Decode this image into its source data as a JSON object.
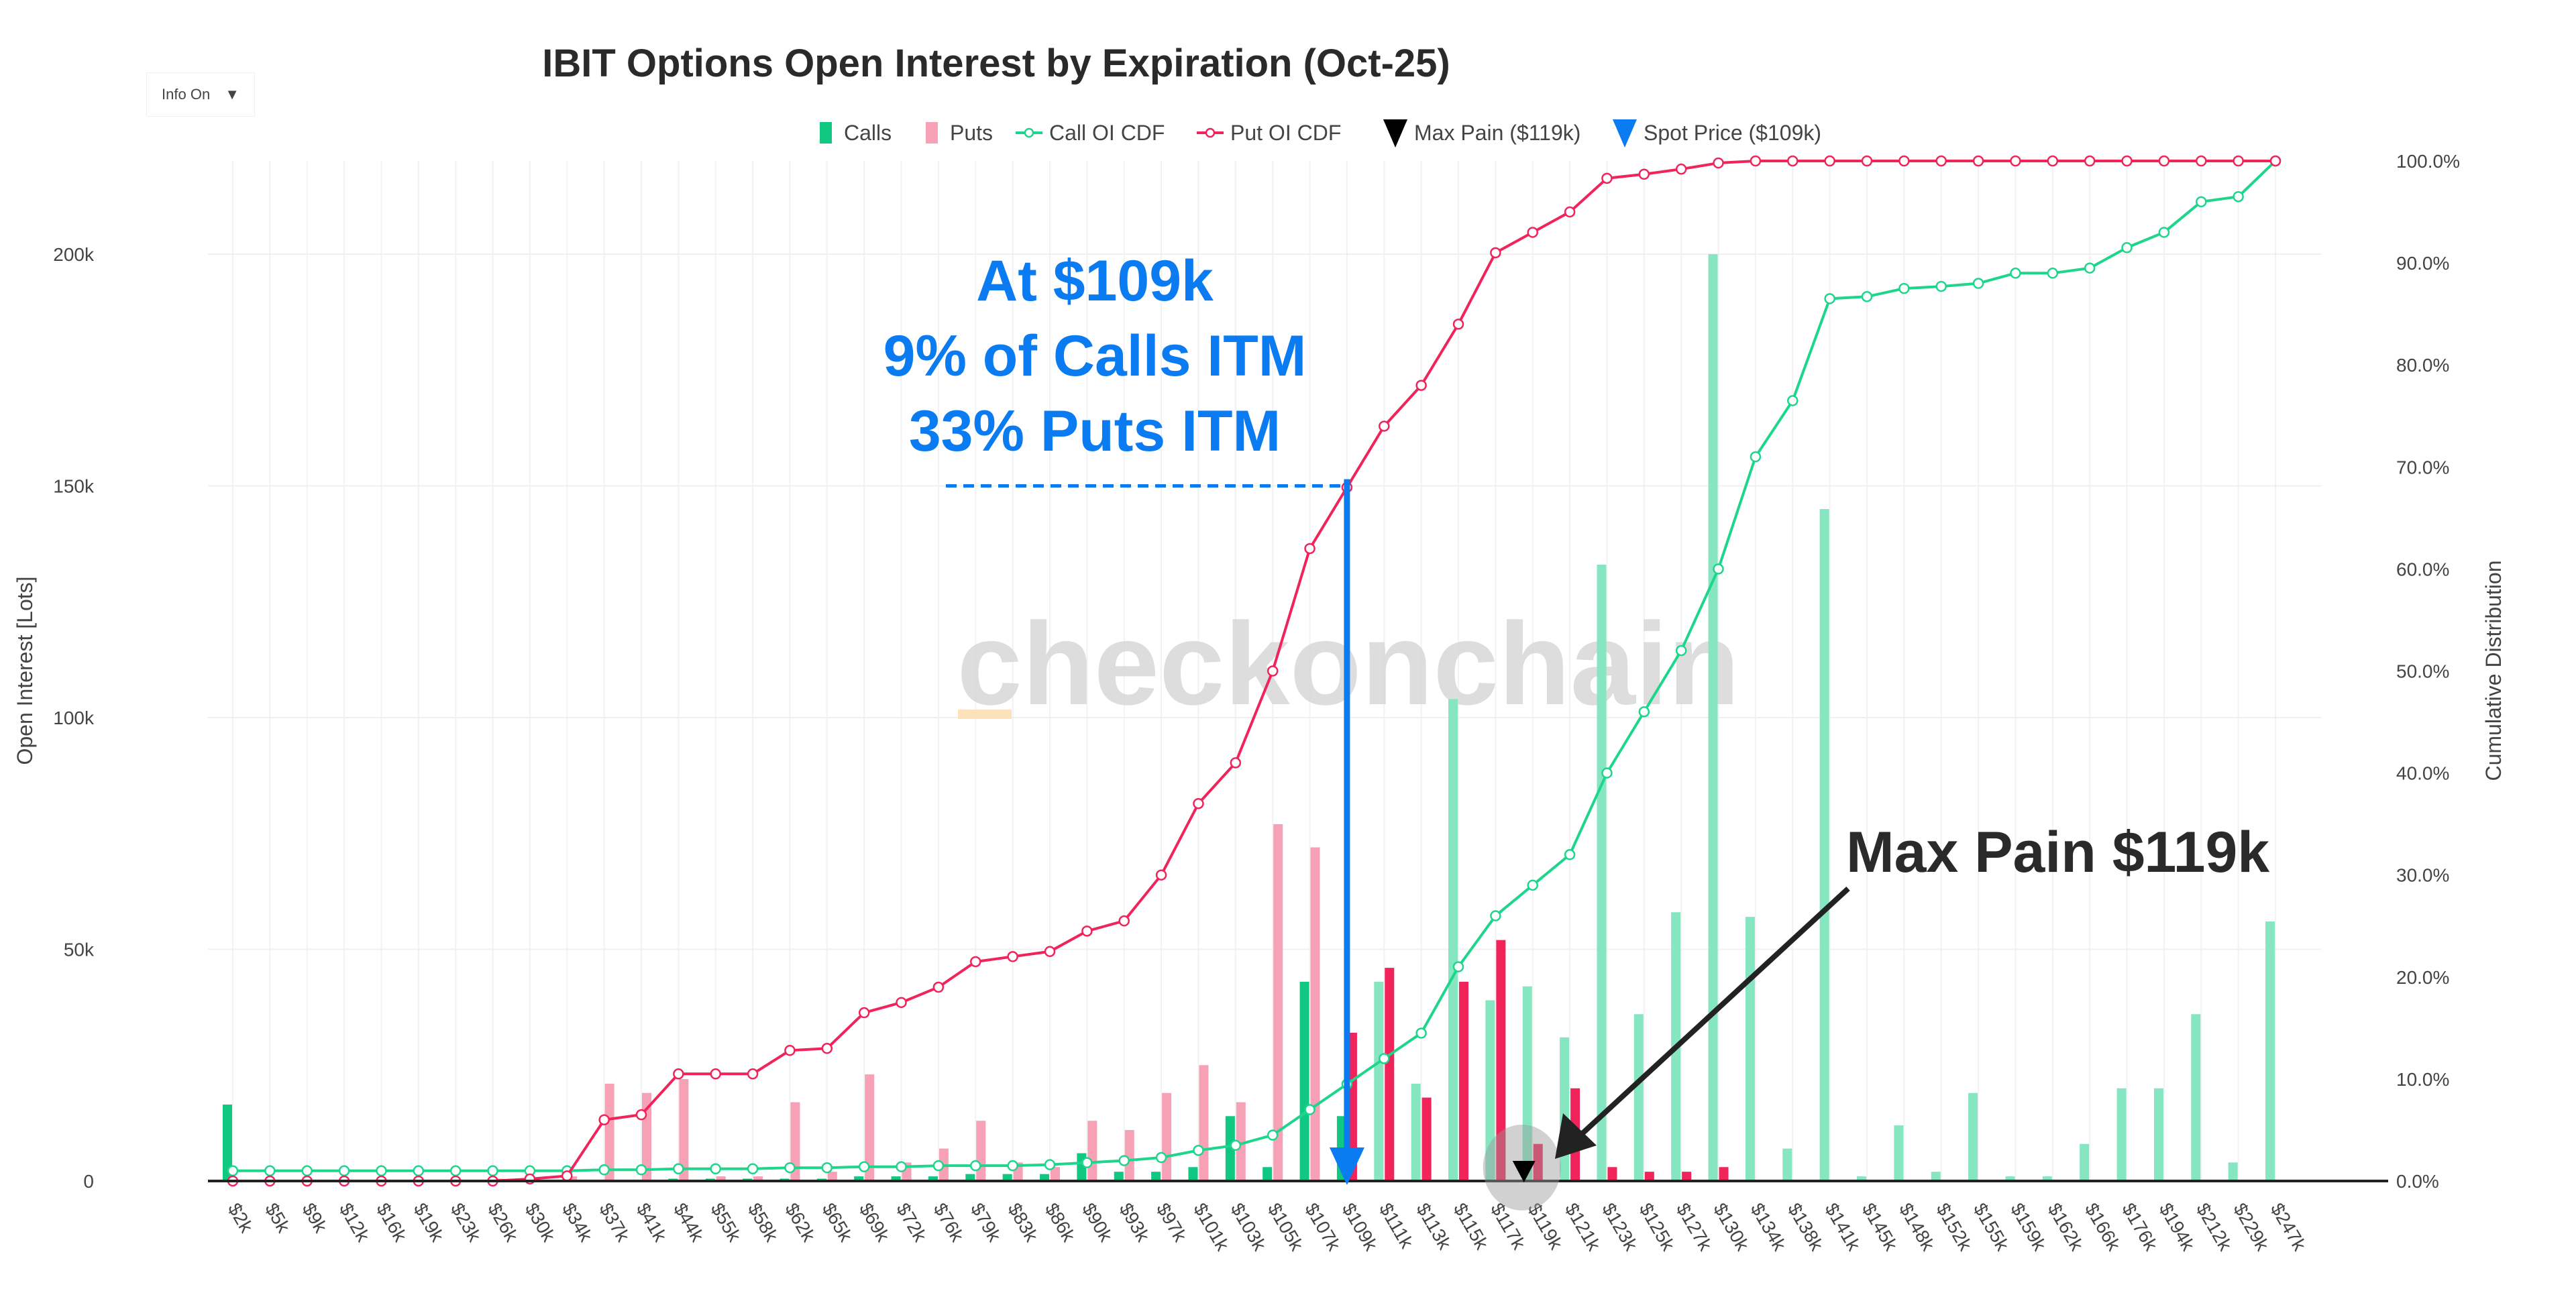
{
  "info_dropdown": {
    "label": "Info On",
    "icon": "caret-down-icon"
  },
  "watermark": "checkonchain",
  "colors": {
    "calls_itm": "#10c882",
    "calls_otm": "#86e6c2",
    "puts_itm": "#f6a1b5",
    "puts_otm": "#f0245a",
    "call_cdf": "#1ed68b",
    "put_cdf": "#f0245a",
    "max_pain": "#000000",
    "spot": "#0a7bf0"
  },
  "annotations": {
    "spot_lines": [
      "At $109k",
      "9% of Calls ITM",
      "33% Puts ITM"
    ],
    "max_pain": "Max Pain $119k"
  },
  "chart_data": {
    "type": "bar",
    "title": "IBIT Options Open Interest by Expiration (Oct-25)",
    "ylabel": "Open Interest [Lots]",
    "y2label": "Cumulative Distribution",
    "ylim": [
      0,
      220000
    ],
    "y2lim": [
      0,
      100
    ],
    "yticks": [
      "0",
      "50k",
      "100k",
      "150k",
      "200k"
    ],
    "yticks_values": [
      0,
      50000,
      100000,
      150000,
      200000
    ],
    "y2ticks": [
      "0.0%",
      "10.0%",
      "20.0%",
      "30.0%",
      "40.0%",
      "50.0%",
      "60.0%",
      "70.0%",
      "80.0%",
      "90.0%",
      "100.0%"
    ],
    "grid": true,
    "legend_position": "top-center",
    "legend": [
      "Calls",
      "Puts",
      "Call OI CDF",
      "Put OI CDF",
      "Max Pain ($119k)",
      "Spot Price ($109k)"
    ],
    "categories": [
      "$2k",
      "$5k",
      "$9k",
      "$12k",
      "$16k",
      "$19k",
      "$23k",
      "$26k",
      "$30k",
      "$34k",
      "$37k",
      "$41k",
      "$44k",
      "$55k",
      "$58k",
      "$62k",
      "$65k",
      "$69k",
      "$72k",
      "$76k",
      "$79k",
      "$83k",
      "$86k",
      "$90k",
      "$93k",
      "$97k",
      "$101k",
      "$103k",
      "$105k",
      "$107k",
      "$109k",
      "$111k",
      "$113k",
      "$115k",
      "$117k",
      "$119k",
      "$121k",
      "$123k",
      "$125k",
      "$127k",
      "$130k",
      "$134k",
      "$138k",
      "$141k",
      "$145k",
      "$148k",
      "$152k",
      "$155k",
      "$159k",
      "$162k",
      "$166k",
      "$176k",
      "$194k",
      "$212k",
      "$229k",
      "$247k"
    ],
    "series": [
      {
        "name": "Calls",
        "values": [
          16500,
          0,
          0,
          0,
          0,
          0,
          0,
          0,
          0,
          0,
          0,
          0,
          500,
          500,
          500,
          500,
          500,
          1000,
          1000,
          1000,
          1500,
          1500,
          1500,
          6000,
          2000,
          2000,
          3000,
          14000,
          3000,
          43000,
          14000,
          43000,
          21000,
          104000,
          39000,
          42000,
          31000,
          133000,
          36000,
          58000,
          200000,
          57000,
          7000,
          145000,
          1000,
          12000,
          2000,
          19000,
          1000,
          1000,
          8000,
          20000,
          20000,
          36000,
          4000,
          56000
        ]
      },
      {
        "name": "Puts",
        "values": [
          0,
          0,
          0,
          0,
          0,
          0,
          0,
          500,
          500,
          1000,
          21000,
          19000,
          22000,
          1000,
          1000,
          17000,
          2000,
          23000,
          4000,
          7000,
          13000,
          4000,
          3000,
          13000,
          11000,
          19000,
          25000,
          17000,
          77000,
          72000,
          32000,
          46000,
          18000,
          43000,
          52000,
          8000,
          20000,
          3000,
          2000,
          2000,
          3000,
          0,
          0,
          0,
          0,
          0,
          0,
          0,
          0,
          0,
          0,
          0,
          0,
          0,
          0,
          0
        ]
      },
      {
        "name": "Call OI CDF",
        "values": [
          1,
          1,
          1,
          1,
          1,
          1,
          1,
          1,
          1,
          1,
          1.1,
          1.1,
          1.2,
          1.2,
          1.2,
          1.3,
          1.3,
          1.4,
          1.4,
          1.5,
          1.5,
          1.5,
          1.6,
          1.8,
          2,
          2.3,
          3,
          3.5,
          4.5,
          7,
          9.5,
          12,
          14.5,
          21,
          26,
          29,
          32,
          40,
          46,
          52,
          60,
          71,
          76.5,
          86.5,
          86.7,
          87.5,
          87.7,
          88,
          89,
          89,
          89.5,
          91.5,
          93,
          96,
          96.5,
          100
        ]
      },
      {
        "name": "Put OI CDF",
        "values": [
          0,
          0,
          0,
          0,
          0,
          0,
          0,
          0,
          0.2,
          0.5,
          6,
          6.5,
          10.5,
          10.5,
          10.5,
          12.8,
          13,
          16.5,
          17.5,
          19,
          21.5,
          22,
          22.5,
          24.5,
          25.5,
          30,
          37,
          41,
          50,
          62,
          68,
          74,
          78,
          84,
          91,
          93,
          95,
          98.3,
          98.7,
          99.2,
          99.8,
          100,
          100,
          100,
          100,
          100,
          100,
          100,
          100,
          100,
          100,
          100,
          100,
          100,
          100,
          100
        ]
      }
    ],
    "max_pain": "$119k",
    "spot_price": "$109k",
    "spot_level_oi": 150000
  }
}
